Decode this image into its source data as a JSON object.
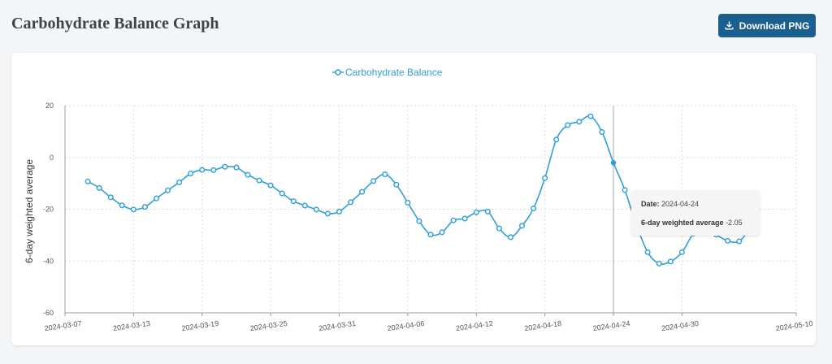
{
  "header": {
    "title": "Carbohydrate Balance Graph",
    "download_label": "Download PNG",
    "download_icon": "download-icon"
  },
  "colors": {
    "accent": "#1b5f8f",
    "series": "#2f9fd8",
    "background": "#f4f5f7",
    "card": "#ffffff"
  },
  "tooltip": {
    "date_label": "Date:",
    "date_value": "2024-04-24",
    "metric_label": "6-day weighted average",
    "metric_value": "-2.05"
  },
  "chart_data": {
    "type": "line",
    "ylabel": "6-day weighted average",
    "xlabel": "",
    "legend": "top-center",
    "grid": true,
    "ylim": [
      -60,
      20
    ],
    "yticks": [
      20,
      0,
      -20,
      -40,
      -60
    ],
    "xlim": [
      "2024-03-07",
      "2024-05-10"
    ],
    "xticks": [
      "2024-03-07",
      "2024-03-13",
      "2024-03-19",
      "2024-03-25",
      "2024-03-31",
      "2024-04-06",
      "2024-04-12",
      "2024-04-18",
      "2024-04-24",
      "2024-04-30",
      "2024-05-10"
    ],
    "hover_x": "2024-04-24",
    "series": [
      {
        "name": "Carbohydrate Balance",
        "x": [
          "2024-03-09",
          "2024-03-10",
          "2024-03-11",
          "2024-03-12",
          "2024-03-13",
          "2024-03-14",
          "2024-03-15",
          "2024-03-16",
          "2024-03-17",
          "2024-03-18",
          "2024-03-19",
          "2024-03-20",
          "2024-03-21",
          "2024-03-22",
          "2024-03-23",
          "2024-03-24",
          "2024-03-25",
          "2024-03-26",
          "2024-03-27",
          "2024-03-28",
          "2024-03-29",
          "2024-03-30",
          "2024-03-31",
          "2024-04-01",
          "2024-04-02",
          "2024-04-03",
          "2024-04-04",
          "2024-04-05",
          "2024-04-06",
          "2024-04-07",
          "2024-04-08",
          "2024-04-09",
          "2024-04-10",
          "2024-04-11",
          "2024-04-12",
          "2024-04-13",
          "2024-04-14",
          "2024-04-15",
          "2024-04-16",
          "2024-04-17",
          "2024-04-18",
          "2024-04-19",
          "2024-04-20",
          "2024-04-21",
          "2024-04-22",
          "2024-04-23",
          "2024-04-24",
          "2024-04-25",
          "2024-04-26",
          "2024-04-27",
          "2024-04-28",
          "2024-04-29",
          "2024-04-30",
          "2024-05-01",
          "2024-05-02",
          "2024-05-03",
          "2024-05-04",
          "2024-05-05",
          "2024-05-06"
        ],
        "values": [
          -9.3,
          -11.8,
          -15.4,
          -18.5,
          -20.1,
          -19.1,
          -15.8,
          -12.7,
          -9.6,
          -6.2,
          -4.8,
          -4.9,
          -3.6,
          -3.9,
          -6.7,
          -8.9,
          -10.8,
          -13.9,
          -16.9,
          -18.6,
          -20.1,
          -21.7,
          -20.9,
          -17.3,
          -13.3,
          -9.1,
          -6.5,
          -10.5,
          -17.5,
          -24.6,
          -29.8,
          -28.9,
          -24.3,
          -23.6,
          -21.2,
          -20.9,
          -27.4,
          -30.8,
          -26.4,
          -19.7,
          -8.0,
          6.9,
          12.5,
          13.8,
          15.9,
          9.8,
          -2.05,
          -12.6,
          -25.9,
          -36.6,
          -41.0,
          -40.2,
          -36.6,
          -29.4,
          -26.6,
          -29.8,
          -32.2,
          -32.4,
          -27.3
        ]
      }
    ]
  }
}
